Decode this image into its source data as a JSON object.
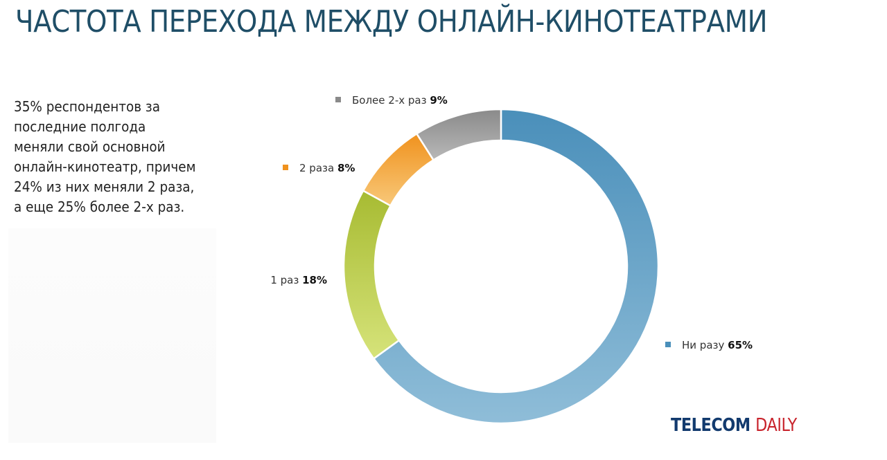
{
  "title": "ЧАСТОТА ПЕРЕХОДА МЕЖДУ ОНЛАЙН-КИНОТЕАТРАМИ",
  "description": "35% респондентов за\nпоследние полгода\nменяли свой основной\nонлайн-кинотеатр, причем\n24% из них меняли 2 раза,\nа еще 25% более 2-х раз.",
  "logo": {
    "part1": "TELECOM",
    "part2": "DAILY"
  },
  "chart_data": {
    "type": "pie",
    "style": "donut",
    "title": "",
    "slices": [
      {
        "label": "Ни разу",
        "value": 65,
        "value_label": "65%",
        "color": "#4a8fba",
        "color_end": "#8fbdd8",
        "legend_marker": true
      },
      {
        "label": "1 раз",
        "value": 18,
        "value_label": "18%",
        "color": "#a7bb32",
        "color_end": "#d6e37a",
        "legend_marker": false
      },
      {
        "label": "2 раза",
        "value": 8,
        "value_label": "8%",
        "color": "#f0921e",
        "color_end": "#f8c879",
        "legend_marker": true
      },
      {
        "label": "Более 2-х раз",
        "value": 9,
        "value_label": "9%",
        "color": "#8a8a8a",
        "color_end": "#b8b8b8",
        "legend_marker": true
      }
    ]
  }
}
